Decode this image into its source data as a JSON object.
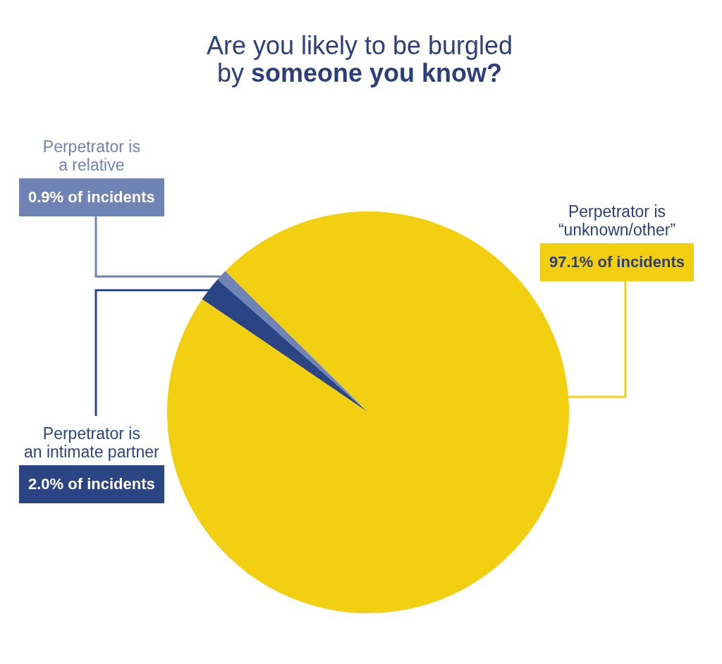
{
  "chart_data": {
    "type": "pie",
    "title": "Are you likely to be burgled\nby someone you know?",
    "categories": [
      "Perpetrator is\nan intimate partner",
      "Perpetrator is\na relative",
      "Perpetrator is\n“unknown/other”"
    ],
    "values": [
      2.0,
      0.9,
      97.1
    ],
    "colors": [
      "#2b4584",
      "#6f84b5",
      "#f2cf11"
    ],
    "value_labels": [
      "2.0% of incidents",
      "0.9% of incidents",
      "97.1% of incidents"
    ]
  }
}
